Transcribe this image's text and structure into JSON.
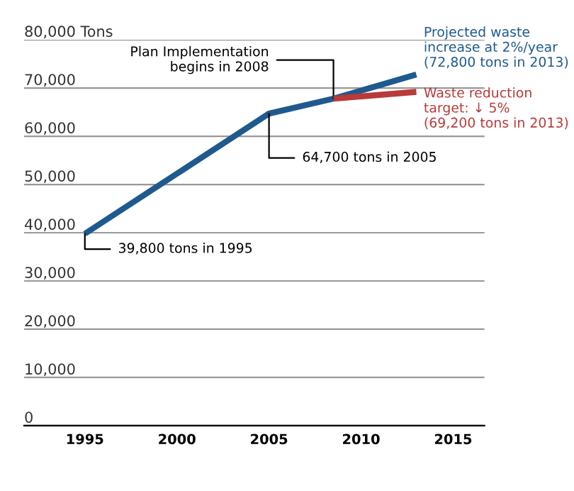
{
  "chart_data": {
    "type": "line",
    "xlim": [
      1991.7,
      2016.7
    ],
    "xticks": [
      1995,
      2000,
      2005,
      2010,
      2015
    ],
    "ylim": [
      0,
      80000
    ],
    "yticks": [
      0,
      {
        "value": 10000,
        "label": "10,000"
      },
      {
        "value": 20000,
        "label": "20,000"
      },
      {
        "value": 30000,
        "label": "30,000"
      },
      {
        "value": 40000,
        "label": "40,000"
      },
      {
        "value": 50000,
        "label": "50,000"
      },
      {
        "value": 60000,
        "label": "60,000"
      },
      {
        "value": 70000,
        "label": "70,000"
      },
      {
        "value": 80000,
        "label": "80,000 Tons"
      }
    ],
    "grid": "y",
    "marker": "none",
    "line_style": "solid",
    "series": [
      {
        "name": "Projected waste\nincrease at 2%/year\n(72,800 tons in 2013)",
        "color": "#1f5a8e",
        "x": [
          1995,
          2005,
          2008.5,
          2013
        ],
        "values": [
          39800,
          64700,
          67800,
          72800
        ]
      },
      {
        "name": "Waste reduction\ntarget: ↓ 5%\n(69,200 tons in 2013)",
        "color": "#b83a3a",
        "x": [
          2008.5,
          2013
        ],
        "values": [
          67800,
          69200
        ]
      }
    ],
    "annotations": [
      {
        "text": "39,800 tons in 1995",
        "x": 1995,
        "y": 39800
      },
      {
        "text": "64,700 tons in 2005",
        "x": 2005,
        "y": 64700
      },
      {
        "text": "Plan Implementation\nbegins in 2008",
        "x": 2008.5,
        "y": 67800
      }
    ]
  }
}
